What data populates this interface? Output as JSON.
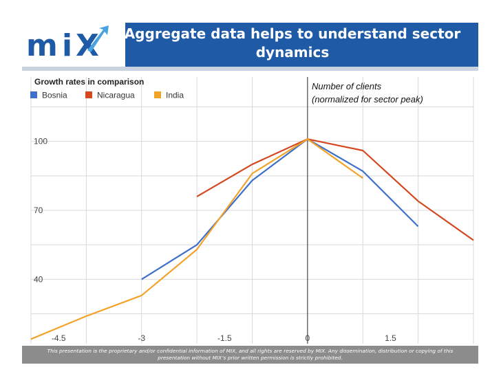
{
  "header": {
    "logo_text": "miX",
    "title_line1": "Aggregate data helps to understand sector",
    "title_line2": "dynamics"
  },
  "annotation": {
    "line1": "Number of clients",
    "line2": "(normalized for sector peak)"
  },
  "footer": {
    "line1": "This presentation is the proprietary and/or confidential information of MIX, and all rights are reserved by MIX. Any dissemination, distribution or copying of this",
    "line2": "presentation without MIX’s prior written permission is strictly prohibited."
  },
  "colors": {
    "header_blue": "#1f5aa6",
    "bosnia": "#3d6fcb",
    "nicaragua": "#d4471f",
    "india": "#f2a32a"
  },
  "chart_data": {
    "type": "line",
    "title": "Growth rates in comparison",
    "xlabel": "",
    "ylabel": "",
    "x_ticks": [
      -4.5,
      -3,
      -1.5,
      0,
      1.5
    ],
    "x_tick_labels": [
      "-4.5",
      "-3",
      "-1.5",
      "0",
      "1.5"
    ],
    "y_ticks": [
      40,
      70,
      100
    ],
    "y_tick_labels": [
      "40",
      "70",
      "100"
    ],
    "xlim": [
      -5,
      3
    ],
    "ylim": [
      12,
      128
    ],
    "grid": true,
    "legend": "top-left",
    "series": [
      {
        "name": "Bosnia",
        "color": "#3d6fcb",
        "x": [
          -3,
          -2,
          -1,
          0,
          1,
          2
        ],
        "y": [
          40,
          55,
          83,
          101,
          87,
          63
        ]
      },
      {
        "name": "Nicaragua",
        "color": "#d4471f",
        "x": [
          -2,
          -1,
          0,
          1,
          2,
          3
        ],
        "y": [
          76,
          90,
          101,
          96,
          74,
          57
        ]
      },
      {
        "name": "India",
        "color": "#f2a32a",
        "x": [
          -5,
          -4,
          -3,
          -2,
          -1,
          0,
          1
        ],
        "y": [
          14,
          24,
          33,
          53,
          86,
          101,
          84
        ]
      }
    ]
  }
}
